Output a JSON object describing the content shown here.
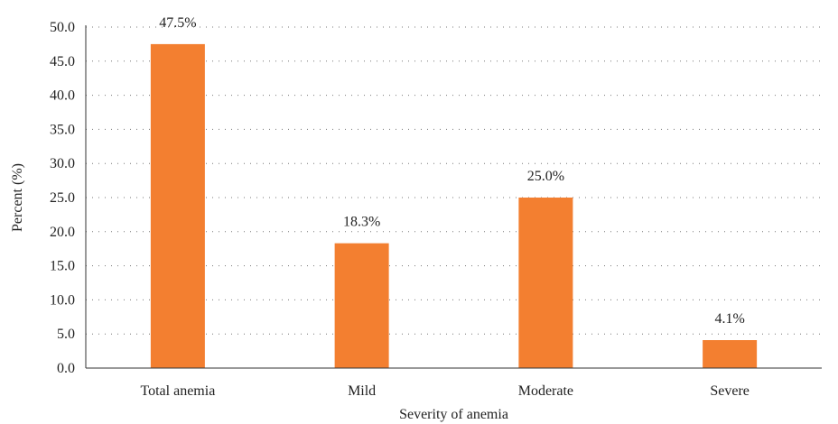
{
  "chart_data": {
    "type": "bar",
    "categories": [
      "Total anemia",
      "Mild",
      "Moderate",
      "Severe"
    ],
    "values": [
      47.5,
      18.3,
      25.0,
      4.1
    ],
    "data_labels": [
      "47.5%",
      "18.3%",
      "25.0%",
      "4.1%"
    ],
    "title": "",
    "xlabel": "Severity of anemia",
    "ylabel": "Percent (%)",
    "ylim": [
      0,
      50
    ],
    "yticks": [
      "0.0",
      "5.0",
      "10.0",
      "15.0",
      "20.0",
      "25.0",
      "30.0",
      "35.0",
      "40.0",
      "45.0",
      "50.0"
    ],
    "grid": "horizontal-dotted",
    "legend": "none",
    "bar_color": "#f37f30"
  }
}
